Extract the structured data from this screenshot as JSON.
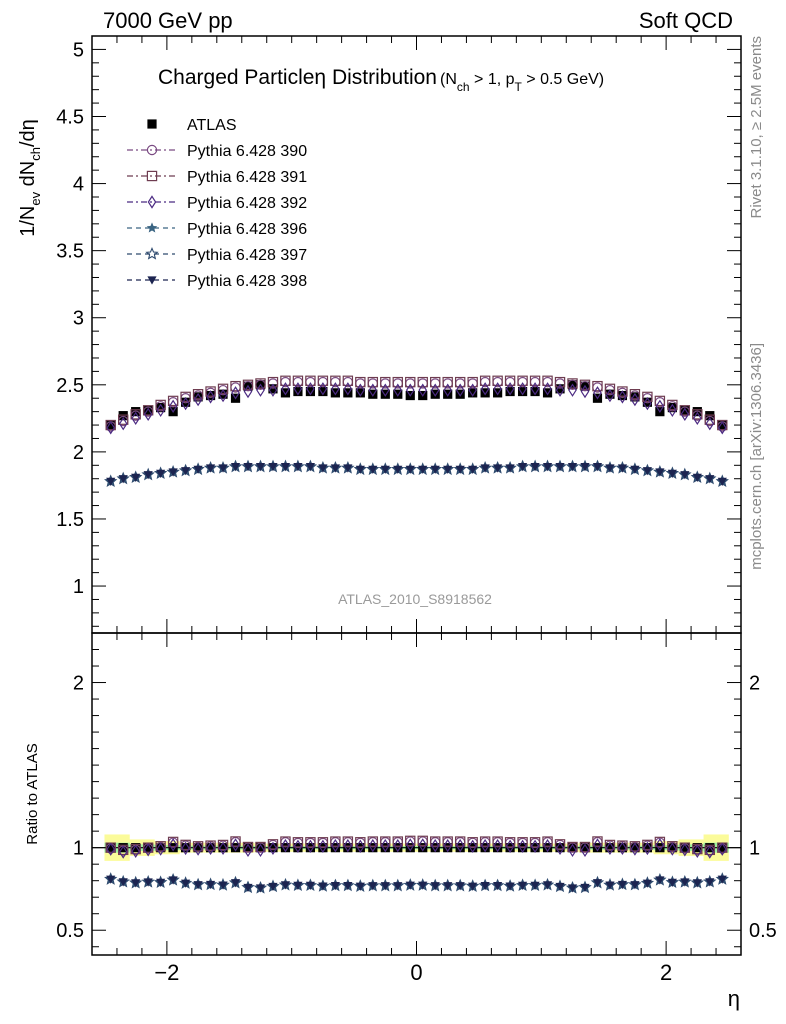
{
  "header": {
    "left": "7000 GeV pp",
    "right": "Soft QCD"
  },
  "title": {
    "main": "Charged Particle",
    "eta": "η",
    "main2": " Distribution",
    "cond_a": "(N",
    "cond_a_sub": "ch",
    "cond_b": " > 1, p",
    "cond_b_sub": "T",
    "cond_c": " > 0.5 GeV)"
  },
  "ylabel_top": {
    "a": "1/N",
    "a_sub": "ev",
    "b": " dN",
    "b_sub": "ch",
    "c": "/dη"
  },
  "ylabel_bottom": "Ratio to ATLAS",
  "xlabel": "η",
  "watermark": "ATLAS_2010_S8918562",
  "side_text_top": "Rivet 3.1.10, ≥ 2.5M events",
  "side_text_bottom": "mcplots.cern.ch [arXiv:1306.3436]",
  "legend": [
    {
      "label": "ATLAS",
      "marker": "square-filled",
      "color": "#000000"
    },
    {
      "label": "Pythia 6.428 390",
      "marker": "circle-open",
      "color": "#7a4a82"
    },
    {
      "label": "Pythia 6.428 391",
      "marker": "square-open",
      "color": "#6e3c50"
    },
    {
      "label": "Pythia 6.428 392",
      "marker": "diamond-open",
      "color": "#4b2a82"
    },
    {
      "label": "Pythia 6.428 396",
      "marker": "star-filled",
      "color": "#3a6482"
    },
    {
      "label": "Pythia 6.428 397",
      "marker": "star-open",
      "color": "#2e4a6e"
    },
    {
      "label": "Pythia 6.428 398",
      "marker": "triangle-down-filled",
      "color": "#1c2450"
    }
  ],
  "chart_data": {
    "type": "scatter",
    "x": [
      -2.45,
      -2.35,
      -2.25,
      -2.15,
      -2.05,
      -1.95,
      -1.85,
      -1.75,
      -1.65,
      -1.55,
      -1.45,
      -1.35,
      -1.25,
      -1.15,
      -1.05,
      -0.95,
      -0.85,
      -0.75,
      -0.65,
      -0.55,
      -0.45,
      -0.35,
      -0.25,
      -0.15,
      -0.05,
      0.05,
      0.15,
      0.25,
      0.35,
      0.45,
      0.55,
      0.65,
      0.75,
      0.85,
      0.95,
      1.05,
      1.15,
      1.25,
      1.35,
      1.45,
      1.55,
      1.65,
      1.75,
      1.85,
      1.95,
      2.05,
      2.15,
      2.25,
      2.35,
      2.45
    ],
    "xlim": [
      -2.6,
      2.6
    ],
    "xticks": [
      "−2",
      "0",
      "2"
    ],
    "xtick_values": [
      -2,
      0,
      2
    ],
    "main_ylim": [
      0.65,
      5.1
    ],
    "main_yticks": [
      "1",
      "1.5",
      "2",
      "2.5",
      "3",
      "3.5",
      "4",
      "4.5",
      "5"
    ],
    "main_ytick_values": [
      1,
      1.5,
      2,
      2.5,
      3,
      3.5,
      4,
      4.5,
      5
    ],
    "ratio_ylim": [
      0.35,
      2.3
    ],
    "ratio_yticks": [
      "0.5",
      "1",
      "2"
    ],
    "ratio_ytick_values": [
      0.5,
      1,
      2
    ],
    "ratio_band_outer": [
      0.08,
      0.08,
      0.05,
      0.05,
      0.04,
      0.04,
      0.03,
      0.03,
      0.03,
      0.03,
      0.03,
      0.03,
      0.025,
      0.025,
      0.025,
      0.025,
      0.025,
      0.025,
      0.025,
      0.025,
      0.025,
      0.025,
      0.025,
      0.025,
      0.025,
      0.025,
      0.025,
      0.025,
      0.025,
      0.025,
      0.025,
      0.025,
      0.025,
      0.025,
      0.025,
      0.025,
      0.025,
      0.025,
      0.03,
      0.03,
      0.03,
      0.03,
      0.03,
      0.03,
      0.04,
      0.04,
      0.05,
      0.05,
      0.08,
      0.08
    ],
    "ratio_band_inner": [
      0.03,
      0.03,
      0.02,
      0.02,
      0.015,
      0.015,
      0.012,
      0.012,
      0.012,
      0.012,
      0.012,
      0.012,
      0.01,
      0.01,
      0.01,
      0.01,
      0.01,
      0.01,
      0.01,
      0.01,
      0.01,
      0.01,
      0.01,
      0.01,
      0.01,
      0.01,
      0.01,
      0.01,
      0.01,
      0.01,
      0.01,
      0.01,
      0.01,
      0.01,
      0.01,
      0.01,
      0.01,
      0.01,
      0.012,
      0.012,
      0.012,
      0.012,
      0.012,
      0.012,
      0.015,
      0.015,
      0.02,
      0.02,
      0.03,
      0.03
    ],
    "series": [
      {
        "name": "ATLAS",
        "values": [
          2.2,
          2.27,
          2.3,
          2.31,
          2.33,
          2.3,
          2.37,
          2.41,
          2.42,
          2.43,
          2.4,
          2.49,
          2.5,
          2.47,
          2.44,
          2.45,
          2.45,
          2.45,
          2.44,
          2.44,
          2.44,
          2.43,
          2.43,
          2.43,
          2.42,
          2.42,
          2.43,
          2.43,
          2.43,
          2.44,
          2.44,
          2.44,
          2.45,
          2.45,
          2.45,
          2.44,
          2.47,
          2.5,
          2.49,
          2.4,
          2.43,
          2.42,
          2.41,
          2.37,
          2.3,
          2.33,
          2.31,
          2.3,
          2.27,
          2.2
        ]
      },
      {
        "name": "Pythia 6.428 390",
        "values": [
          2.19,
          2.23,
          2.27,
          2.3,
          2.34,
          2.37,
          2.4,
          2.42,
          2.44,
          2.46,
          2.48,
          2.49,
          2.5,
          2.51,
          2.52,
          2.52,
          2.52,
          2.52,
          2.52,
          2.52,
          2.51,
          2.51,
          2.51,
          2.51,
          2.51,
          2.51,
          2.51,
          2.51,
          2.51,
          2.51,
          2.52,
          2.52,
          2.52,
          2.52,
          2.52,
          2.52,
          2.51,
          2.5,
          2.49,
          2.48,
          2.46,
          2.44,
          2.42,
          2.4,
          2.37,
          2.34,
          2.3,
          2.27,
          2.23,
          2.19
        ]
      },
      {
        "name": "Pythia 6.428 391",
        "values": [
          2.2,
          2.24,
          2.28,
          2.31,
          2.35,
          2.38,
          2.41,
          2.43,
          2.45,
          2.47,
          2.49,
          2.5,
          2.51,
          2.52,
          2.53,
          2.53,
          2.53,
          2.53,
          2.53,
          2.53,
          2.52,
          2.52,
          2.52,
          2.52,
          2.52,
          2.52,
          2.52,
          2.52,
          2.52,
          2.52,
          2.53,
          2.53,
          2.53,
          2.53,
          2.53,
          2.53,
          2.52,
          2.51,
          2.5,
          2.49,
          2.47,
          2.45,
          2.43,
          2.41,
          2.38,
          2.35,
          2.31,
          2.28,
          2.24,
          2.2
        ]
      },
      {
        "name": "Pythia 6.428 392",
        "values": [
          2.18,
          2.21,
          2.25,
          2.28,
          2.31,
          2.34,
          2.36,
          2.39,
          2.41,
          2.42,
          2.44,
          2.45,
          2.46,
          2.46,
          2.47,
          2.47,
          2.47,
          2.47,
          2.47,
          2.47,
          2.46,
          2.46,
          2.46,
          2.46,
          2.46,
          2.46,
          2.46,
          2.46,
          2.46,
          2.46,
          2.47,
          2.47,
          2.47,
          2.47,
          2.47,
          2.47,
          2.46,
          2.46,
          2.45,
          2.44,
          2.42,
          2.41,
          2.39,
          2.36,
          2.34,
          2.31,
          2.28,
          2.25,
          2.21,
          2.18
        ]
      },
      {
        "name": "Pythia 6.428 396",
        "values": [
          1.78,
          1.8,
          1.81,
          1.83,
          1.84,
          1.85,
          1.86,
          1.87,
          1.88,
          1.88,
          1.89,
          1.89,
          1.89,
          1.89,
          1.89,
          1.89,
          1.89,
          1.88,
          1.88,
          1.88,
          1.87,
          1.87,
          1.87,
          1.87,
          1.87,
          1.87,
          1.87,
          1.87,
          1.87,
          1.87,
          1.88,
          1.88,
          1.88,
          1.89,
          1.89,
          1.89,
          1.89,
          1.89,
          1.89,
          1.89,
          1.88,
          1.88,
          1.87,
          1.86,
          1.85,
          1.84,
          1.83,
          1.81,
          1.8,
          1.78
        ]
      },
      {
        "name": "Pythia 6.428 397",
        "values": [
          1.78,
          1.8,
          1.81,
          1.83,
          1.84,
          1.85,
          1.86,
          1.87,
          1.88,
          1.88,
          1.89,
          1.89,
          1.89,
          1.89,
          1.89,
          1.89,
          1.89,
          1.88,
          1.88,
          1.88,
          1.87,
          1.87,
          1.87,
          1.87,
          1.87,
          1.87,
          1.87,
          1.87,
          1.87,
          1.87,
          1.88,
          1.88,
          1.88,
          1.89,
          1.89,
          1.89,
          1.89,
          1.89,
          1.89,
          1.89,
          1.88,
          1.88,
          1.87,
          1.86,
          1.85,
          1.84,
          1.83,
          1.81,
          1.8,
          1.78
        ]
      },
      {
        "name": "Pythia 6.428 398",
        "values": [
          1.78,
          1.8,
          1.81,
          1.83,
          1.84,
          1.85,
          1.86,
          1.87,
          1.88,
          1.88,
          1.89,
          1.89,
          1.89,
          1.89,
          1.89,
          1.89,
          1.89,
          1.88,
          1.88,
          1.88,
          1.87,
          1.87,
          1.87,
          1.87,
          1.87,
          1.87,
          1.87,
          1.87,
          1.87,
          1.87,
          1.88,
          1.88,
          1.88,
          1.89,
          1.89,
          1.89,
          1.89,
          1.89,
          1.89,
          1.89,
          1.88,
          1.88,
          1.87,
          1.86,
          1.85,
          1.84,
          1.83,
          1.81,
          1.8,
          1.78
        ]
      }
    ]
  }
}
